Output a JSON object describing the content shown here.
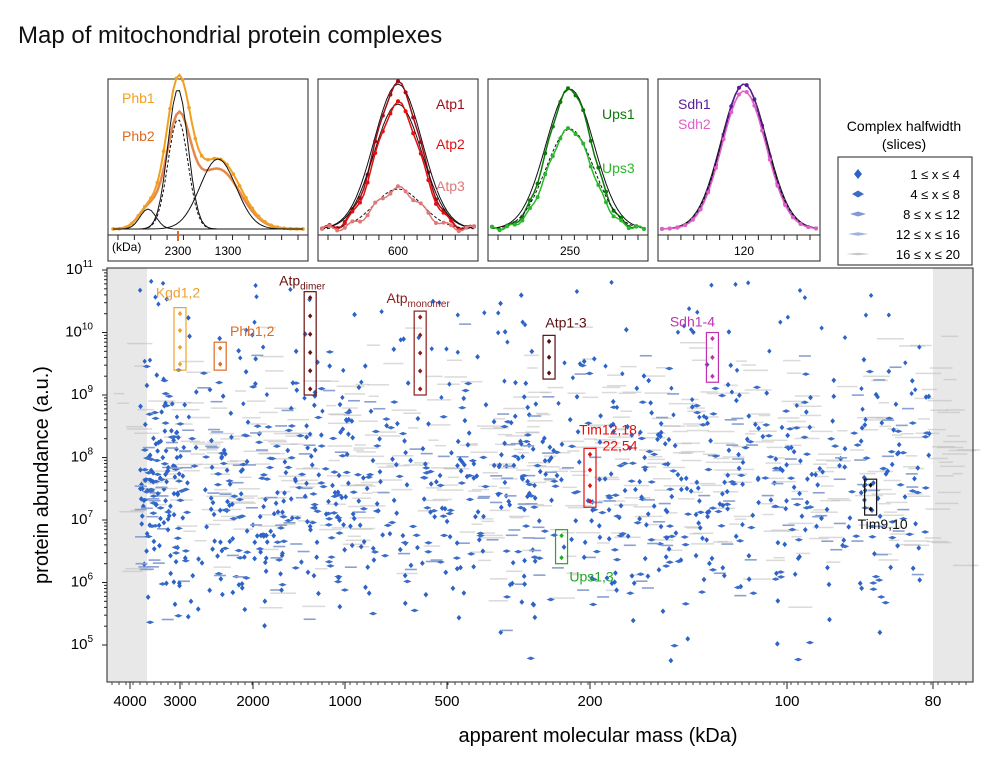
{
  "title": "Map of mitochondrial protein complexes",
  "colors": {
    "point": "#2d63c8",
    "shade": "#e8e8e8",
    "gray_ellipse": "#bcbcbc"
  },
  "chart_data": [
    {
      "panel": "main",
      "type": "scatter",
      "xlabel": "apparent molecular mass  (kDa)",
      "ylabel": "protein abundance  (a.u.)",
      "x_scale": "log",
      "x_ticks": [
        4000,
        3000,
        2000,
        1000,
        500,
        200,
        100,
        80
      ],
      "y_scale": "log",
      "y_ticks": [
        {
          "value": 100000,
          "base": "10",
          "exp": "5"
        },
        {
          "value": 1000000,
          "base": "10",
          "exp": "6"
        },
        {
          "value": 10000000,
          "base": "10",
          "exp": "7"
        },
        {
          "value": 100000000,
          "base": "10",
          "exp": "8"
        },
        {
          "value": 1000000000,
          "base": "10",
          "exp": "9"
        },
        {
          "value": 10000000000,
          "base": "10",
          "exp": "10"
        },
        {
          "value": 100000000000,
          "base": "10",
          "exp": "11"
        }
      ],
      "ylim": [
        30000,
        120000000000
      ],
      "highlighted_complexes": [
        {
          "label": "Kgd1,2",
          "color": "#f0a030",
          "x": 3000,
          "y_range": [
            2500000000,
            25000000000
          ]
        },
        {
          "label": "Phb1,2",
          "color": "#e06a20",
          "x": 2400,
          "y_range": [
            2500000000,
            7000000000
          ]
        },
        {
          "label": "Atp",
          "sub": "dimer",
          "color": "#6b1010",
          "x": 1300,
          "y_range": [
            1000000000,
            45000000000
          ]
        },
        {
          "label": "Atp",
          "sub": "monomer",
          "color": "#8b1c1c",
          "x": 600,
          "y_range": [
            1000000000,
            22000000000
          ]
        },
        {
          "label": "Atp1-3",
          "color": "#5a0f0f",
          "x": 260,
          "y_range": [
            1800000000,
            9000000000
          ]
        },
        {
          "label": "Tim12,18,",
          "label2": "22,54",
          "color": "#e01010",
          "x": 200,
          "y_range": [
            16000000,
            140000000
          ]
        },
        {
          "label": "Ups1,3",
          "color": "#22aa22",
          "x": 240,
          "y_range": [
            2000000,
            7000000
          ]
        },
        {
          "label": "Sdh1-4",
          "color": "#c030b0",
          "x": 130,
          "y_range": [
            1600000000,
            10000000000
          ]
        },
        {
          "label": "Tim9,10",
          "color": "#111111",
          "x": 88,
          "y_range": [
            12000000,
            45000000
          ]
        }
      ]
    },
    {
      "panel": "inset-phb",
      "type": "line",
      "xlabel": "(kDa)",
      "x_ticks": [
        "2300",
        "1300"
      ],
      "series": [
        {
          "name": "Phb1",
          "color": "#f0a020"
        },
        {
          "name": "Phb2",
          "color": "#e06a20"
        }
      ]
    },
    {
      "panel": "inset-atp",
      "type": "line",
      "x_ticks": [
        "600"
      ],
      "series": [
        {
          "name": "Atp1",
          "color": "#a00d1c"
        },
        {
          "name": "Atp2",
          "color": "#e01010"
        },
        {
          "name": "Atp3",
          "color": "#e07878"
        }
      ]
    },
    {
      "panel": "inset-ups",
      "type": "line",
      "x_ticks": [
        "250"
      ],
      "series": [
        {
          "name": "Ups1",
          "color": "#0a7a0a"
        },
        {
          "name": "Ups3",
          "color": "#2ab82a"
        }
      ]
    },
    {
      "panel": "inset-sdh",
      "type": "line",
      "x_ticks": [
        "120"
      ],
      "series": [
        {
          "name": "Sdh1",
          "color": "#5a1a9a"
        },
        {
          "name": "Sdh2",
          "color": "#e060c8"
        }
      ]
    }
  ],
  "legend": {
    "title_line1": "Complex halfwidth",
    "title_line2": "(slices)",
    "items": [
      "1 ≤ x ≤ 4",
      "4 ≤ x ≤ 8",
      "8 ≤ x ≤ 12",
      "12 ≤ x ≤ 16",
      "16 ≤ x ≤ 20"
    ]
  }
}
